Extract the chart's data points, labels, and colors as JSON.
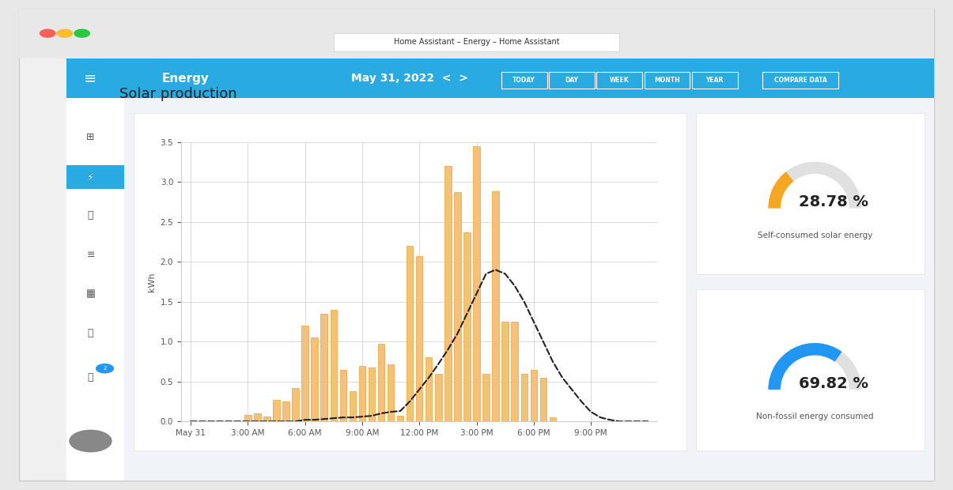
{
  "title": "Solar production",
  "ylabel": "kWh",
  "bar_color": "#f5c07a",
  "bar_edge_color": "#f0a030",
  "dashed_line_color": "#222222",
  "background_color": "#f0f4f8",
  "chart_bg": "#ffffff",
  "grid_color": "#cccccc",
  "x_labels": [
    "May 31",
    "3:00 AM",
    "6:00 AM",
    "9:00 AM",
    "12:00 PM",
    "3:00 PM",
    "6:00 PM",
    "9:00 PM"
  ],
  "x_ticks": [
    0,
    6,
    12,
    18,
    24,
    30,
    36,
    42
  ],
  "bar_values": [
    0,
    0,
    0,
    0,
    0,
    0,
    0.08,
    0.1,
    0.06,
    0.27,
    0.25,
    0.42,
    1.2,
    1.05,
    1.35,
    1.4,
    0.65,
    0.38,
    0.7,
    0.68,
    0.97,
    0.72,
    0.07,
    2.2,
    2.07,
    0.8,
    0.6,
    3.2,
    2.87,
    2.37,
    3.45,
    0.6,
    2.88,
    1.25,
    1.25,
    0.6,
    0.65,
    0.55,
    0.05,
    0,
    0,
    0,
    0,
    0,
    0,
    0,
    0,
    0,
    0
  ],
  "dashed_values": [
    0,
    0,
    0,
    0,
    0,
    0,
    0,
    0,
    0,
    0,
    0,
    0,
    0.02,
    0.02,
    0.03,
    0.04,
    0.05,
    0.05,
    0.06,
    0.07,
    0.1,
    0.12,
    0.13,
    0.25,
    0.4,
    0.55,
    0.72,
    0.9,
    1.1,
    1.35,
    1.6,
    1.85,
    1.9,
    1.85,
    1.7,
    1.5,
    1.25,
    1.0,
    0.75,
    0.55,
    0.4,
    0.25,
    0.12,
    0.05,
    0.02,
    0,
    0,
    0,
    0
  ],
  "ylim": [
    0,
    3.5
  ],
  "yticks": [
    0,
    0.5,
    1.0,
    1.5,
    2.0,
    2.5,
    3.0,
    3.5
  ],
  "gauge1_value": 28.78,
  "gauge1_label": "Self-consumed solar energy",
  "gauge1_color": "#f5a623",
  "gauge1_bg": "#e0e0e0",
  "gauge2_value": 69.82,
  "gauge2_label": "Non-fossil energy consumed",
  "gauge2_color": "#2196f3",
  "gauge2_bg": "#e0e0e0",
  "header_bg": "#29abe2",
  "header_title": "Home Assistant – Energy – Home Assistant",
  "energy_label": "Energy",
  "date_label": "May 31, 2022",
  "nav_buttons": [
    "TODAY",
    "DAY",
    "WEEK",
    "MONTH",
    "YEAR",
    "COMPARE DATA"
  ],
  "sidebar_bg": "#f5f5f5",
  "panel_bg": "#ffffff",
  "top_bar_bg": "#29abe2"
}
